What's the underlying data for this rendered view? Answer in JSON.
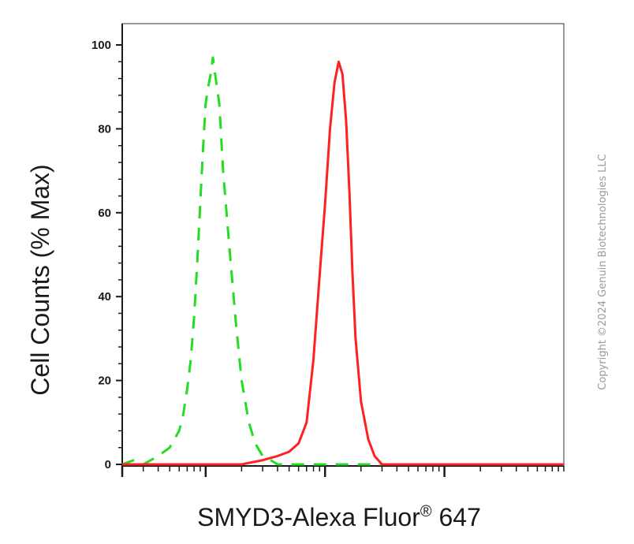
{
  "chart_data": {
    "type": "line",
    "title": "",
    "xlabel": "SMYD3-Alexa Fluor",
    "xlabel_superscript": "®",
    "xlabel_suffix": " 647",
    "ylabel": "Cell Counts (% Max)",
    "x_scale": "log",
    "xlim": [
      20,
      100000
    ],
    "ylim": [
      0,
      100
    ],
    "y_ticks": [
      0,
      20,
      40,
      60,
      80,
      100
    ],
    "x_major_ticks": [
      100,
      1000,
      10000
    ],
    "grid": false,
    "series": [
      {
        "color": "#22dd22",
        "style": "dashed",
        "x": [
          20,
          25,
          30,
          40,
          50,
          60,
          65,
          70,
          75,
          80,
          85,
          90,
          95,
          100,
          105,
          110,
          115,
          120,
          130,
          140,
          160,
          180,
          200,
          230,
          260,
          300,
          350,
          400,
          500,
          700,
          1000,
          2000,
          5000,
          100000
        ],
        "y": [
          0,
          1,
          0,
          2,
          4,
          8,
          12,
          18,
          25,
          35,
          48,
          62,
          75,
          86,
          90,
          93,
          97,
          93,
          86,
          70,
          50,
          33,
          20,
          10,
          5,
          2,
          1,
          0,
          0,
          0,
          0,
          0,
          0,
          0
        ]
      },
      {
        "color": "#ff2020",
        "style": "solid",
        "x": [
          20,
          200,
          300,
          400,
          500,
          600,
          700,
          800,
          900,
          1000,
          1100,
          1200,
          1300,
          1400,
          1500,
          1600,
          1700,
          1800,
          2000,
          2300,
          2600,
          3000,
          3500,
          4000,
          4500,
          5000,
          6000,
          100000
        ],
        "y": [
          0,
          0,
          1,
          2,
          3,
          5,
          10,
          25,
          45,
          62,
          80,
          91,
          96,
          93,
          82,
          65,
          45,
          30,
          15,
          6,
          2,
          0,
          0,
          0,
          0,
          0,
          0,
          0
        ]
      }
    ]
  },
  "watermark": "Copyright ©2024 Genuin Biotechnologies LLC"
}
